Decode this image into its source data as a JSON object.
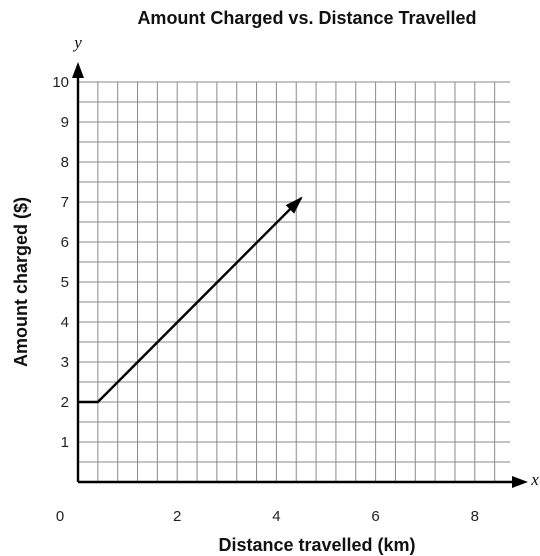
{
  "chart_data": {
    "type": "line",
    "title": "Amount Charged vs. Distance Travelled",
    "xlabel": "Distance travelled (km)",
    "ylabel": "Amount charged ($)",
    "x_var": "x",
    "y_var": "y",
    "xlim": [
      0,
      9
    ],
    "ylim": [
      0,
      10
    ],
    "x_ticks": [
      2,
      4,
      6,
      8
    ],
    "x_origin_label": "0",
    "y_ticks": [
      1,
      2,
      3,
      4,
      5,
      6,
      7,
      8,
      9,
      10
    ],
    "grid": true,
    "grid_step_x": 0.4,
    "grid_step_y": 0.5,
    "series": [
      {
        "points": [
          [
            0,
            2
          ],
          [
            0.4,
            2
          ],
          [
            4.5,
            7.1
          ]
        ],
        "end_arrow": true
      }
    ]
  }
}
